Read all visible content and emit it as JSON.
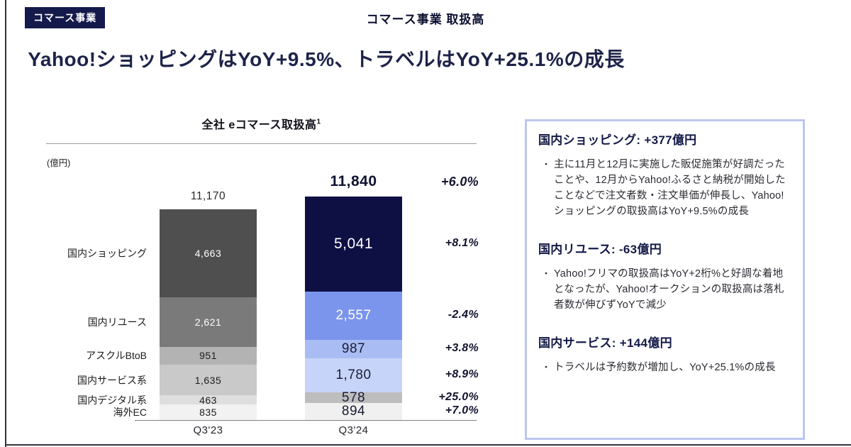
{
  "page": {
    "badge": "コマース事業",
    "header_title": "コマース事業 取扱高",
    "headline": "Yahoo!ショッピングはYoY+9.5%、トラベルはYoY+25.1%の成長"
  },
  "chart_data": {
    "type": "bar",
    "stacked": true,
    "title": "全社 eコマース取扱高",
    "title_superscript": "1",
    "unit_label": "(億円)",
    "categories": [
      "Q3'23",
      "Q3'24"
    ],
    "series": [
      {
        "name": "国内ショッピング",
        "values": [
          4663,
          5041
        ],
        "labels": [
          "4,663",
          "5,041"
        ],
        "yoy": "+8.1%",
        "bar_colors": [
          "#4f4f4f",
          "#0e1044"
        ],
        "text_colors": [
          "#ffffff",
          "#ffffff"
        ]
      },
      {
        "name": "国内リユース",
        "values": [
          2621,
          2557
        ],
        "labels": [
          "2,621",
          "2,557"
        ],
        "yoy": "-2.4%",
        "bar_colors": [
          "#7a7a7a",
          "#7b95ec"
        ],
        "text_colors": [
          "#ffffff",
          "#ffffff"
        ]
      },
      {
        "name": "アスクルBtoB",
        "values": [
          951,
          987
        ],
        "labels": [
          "951",
          "987"
        ],
        "yoy": "+3.8%",
        "bar_colors": [
          "#b3b3b3",
          "#a9bdf4"
        ],
        "text_colors": [
          "#1d1d1d",
          "#1b1d33"
        ]
      },
      {
        "name": "国内サービス系",
        "values": [
          1635,
          1780
        ],
        "labels": [
          "1,635",
          "1,780"
        ],
        "yoy": "+8.9%",
        "bar_colors": [
          "#c9c9c9",
          "#c7d4f9"
        ],
        "text_colors": [
          "#1d1d1d",
          "#1b1d33"
        ]
      },
      {
        "name": "国内デジタル系",
        "values": [
          463,
          578
        ],
        "labels": [
          "463",
          "578"
        ],
        "yoy": "+25.0%",
        "bar_colors": [
          "#dedede",
          "#bdbdbd"
        ],
        "text_colors": [
          "#1d1d1d",
          "#1b1d33"
        ]
      },
      {
        "name": "海外EC",
        "values": [
          835,
          894
        ],
        "labels": [
          "835",
          "894"
        ],
        "yoy": "+7.0%",
        "bar_colors": [
          "#f2f2f2",
          "#f0f0f0"
        ],
        "text_colors": [
          "#1d1d1d",
          "#1b1d33"
        ]
      }
    ],
    "totals": {
      "values": [
        11170,
        11840
      ],
      "labels": [
        "11,170",
        "11,840"
      ],
      "yoy": "+6.0%"
    },
    "ylim": [
      0,
      12000
    ],
    "grid": false,
    "legend": "none"
  },
  "panel": {
    "sections": [
      {
        "heading": "国内ショッピング: +377億円",
        "bullets": [
          "主に11月と12月に実施した販促施策が好調だったことや、12月からYahoo!ふるさと納税が開始したことなどで注文者数・注文単価が伸長し、Yahoo!ショッピングの取扱高はYoY+9.5%の成長"
        ]
      },
      {
        "heading": "国内リユース: -63億円",
        "bullets": [
          "Yahoo!フリマの取扱高はYoY+2桁%と好調な着地となったが、Yahoo!オークションの取扱高は落札者数が伸びずYoYで減少"
        ]
      },
      {
        "heading": "国内サービス: +144億円",
        "bullets": [
          "トラベルは予約数が増加し、YoY+25.1%の成長"
        ]
      }
    ]
  },
  "colors": {
    "brand_navy": "#141a4b",
    "headline_navy": "#1d2349",
    "panel_border": "#bcc6f2",
    "q323_dark": "#4f4f4f",
    "q324_dark": "#0e1044",
    "q324_blue": "#7b95ec"
  }
}
